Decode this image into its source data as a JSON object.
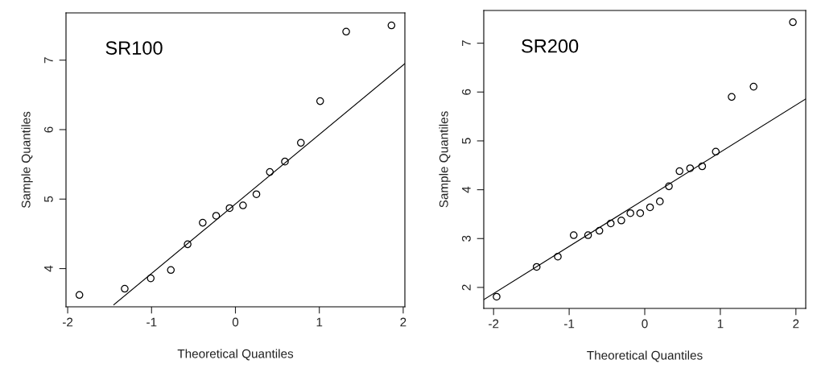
{
  "chart_data": [
    {
      "type": "scatter",
      "xlabel": "Theoretical Quantiles",
      "ylabel": "Sample Quantiles",
      "annotations": [
        "SR100"
      ],
      "grid": false,
      "legend": false,
      "xlim": [
        -2.02,
        2.02
      ],
      "xticks": [
        -2,
        -1,
        0,
        1,
        2
      ],
      "ylim": [
        3.45,
        7.68
      ],
      "yticks": [
        4,
        5,
        6,
        7
      ],
      "series": [
        {
          "marker": "circle",
          "color": "#000000",
          "x": [
            -1.86,
            -1.32,
            -1.01,
            -0.77,
            -0.57,
            -0.39,
            -0.23,
            -0.07,
            0.09,
            0.25,
            0.41,
            0.59,
            0.78,
            1.01,
            1.32,
            1.86
          ],
          "values": [
            3.62,
            3.71,
            3.86,
            3.98,
            4.35,
            4.66,
            4.76,
            4.87,
            4.91,
            5.07,
            5.39,
            5.54,
            5.81,
            6.41,
            7.41,
            7.5
          ]
        },
        {
          "type": "line",
          "color": "#000000",
          "x": [
            -1.45,
            2.02
          ],
          "values": [
            3.48,
            6.95
          ]
        }
      ]
    },
    {
      "type": "scatter",
      "xlabel": "Theoretical Quantiles",
      "ylabel": "Sample Quantiles",
      "annotations": [
        "SR200"
      ],
      "grid": false,
      "legend": false,
      "xlim": [
        -2.13,
        2.13
      ],
      "xticks": [
        -2,
        -1,
        0,
        1,
        2
      ],
      "ylim": [
        1.57,
        7.67
      ],
      "yticks": [
        2,
        3,
        4,
        5,
        6,
        7
      ],
      "series": [
        {
          "marker": "circle",
          "color": "#000000",
          "x": [
            -1.96,
            -1.43,
            -1.15,
            -0.94,
            -0.75,
            -0.6,
            -0.45,
            -0.31,
            -0.19,
            -0.06,
            0.07,
            0.2,
            0.32,
            0.46,
            0.6,
            0.76,
            0.94,
            1.15,
            1.44,
            1.96
          ],
          "values": [
            1.81,
            2.42,
            2.63,
            3.07,
            3.07,
            3.16,
            3.31,
            3.37,
            3.52,
            3.52,
            3.64,
            3.76,
            4.07,
            4.38,
            4.44,
            4.48,
            4.78,
            5.9,
            6.11,
            7.43
          ]
        },
        {
          "type": "line",
          "color": "#000000",
          "x": [
            -2.13,
            2.13
          ],
          "values": [
            1.75,
            5.86
          ]
        }
      ]
    }
  ]
}
